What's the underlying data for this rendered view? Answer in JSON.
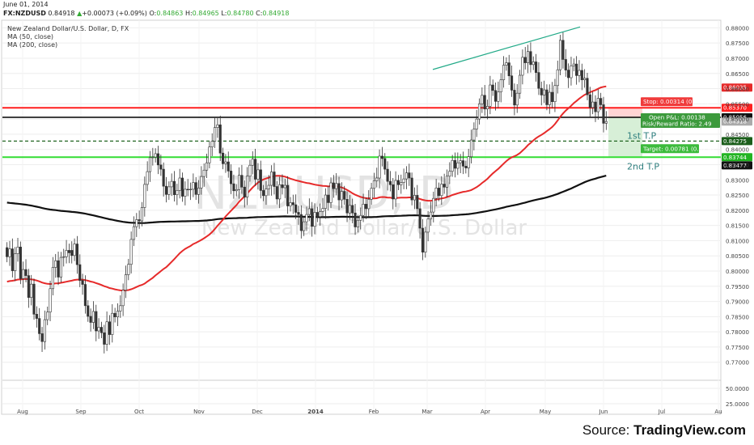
{
  "header": {
    "date": "June 01, 2014",
    "symbol": "FX:NZDUSD",
    "last": "0.84918",
    "change": "+0.00073 (+0.09%)",
    "open_label": "O:",
    "open": "0.84863",
    "high_label": "H:",
    "high": "0.84965",
    "low_label": "L:",
    "low": "0.84780",
    "close_label": "C:",
    "close": "0.84918",
    "title": "New Zealand Dollar/U.S. Dollar, D, FX",
    "ma50": "MA (50, close)",
    "ma200": "MA (200, close)"
  },
  "watermark": {
    "ticker": "NZDUSD, D",
    "name": "New Zealand Dollar/U.S. Dollar"
  },
  "source": {
    "prefix": "Source: ",
    "name": "TradingView.com"
  },
  "colors": {
    "up": "#ffffff",
    "down": "#333333",
    "ma50": "#e62a2a",
    "ma200": "#111111",
    "stop": "#ff1f1f",
    "target": "#33dd33",
    "trend": "#22aa88",
    "profit_zone": "#d7efd7",
    "loss_zone": "#ffd4d4"
  },
  "chart_data": {
    "type": "candlestick",
    "title": "New Zealand Dollar/U.S. Dollar, D, FX",
    "xlabel": "",
    "ylabel": "",
    "x_ticks": [
      "Aug",
      "Sep",
      "Oct",
      "Nov",
      "Dec",
      "2014",
      "Feb",
      "Mar",
      "Apr",
      "May",
      "Jun",
      "Jul",
      "Au"
    ],
    "y_ticks": [
      "0.88000",
      "0.87500",
      "0.87000",
      "0.86500",
      "0.86000",
      "0.85500",
      "0.85000",
      "0.84500",
      "0.84000",
      "0.83500",
      "0.83000",
      "0.82500",
      "0.82000",
      "0.81500",
      "0.81000",
      "0.80500",
      "0.80000",
      "0.79500",
      "0.79000",
      "0.78500",
      "0.78000",
      "0.77500",
      "0.77000",
      "50.0000",
      "25.0000"
    ],
    "ylim": [
      0.7654,
      0.8825
    ],
    "price_lines": [
      {
        "name": "Stop",
        "value": 0.8537,
        "tag": "0.85370",
        "label": "Stop: 0.00314 (0.37%)"
      },
      {
        "name": "Entry",
        "value": 0.85056,
        "tag": "0.85056",
        "label": "Open P&L: 0.00138",
        "label2": "Risk/Reward Ratio: 2.49"
      },
      {
        "name": "1st T.P",
        "value": 0.84275,
        "tag": "0.84275",
        "label": "1st T.P"
      },
      {
        "name": "Target",
        "value": 0.83744,
        "tag": "0.83744",
        "label": "Target: 0.00781 (0.92%)"
      },
      {
        "name": "2nd T.P",
        "value": 0.8344,
        "label": "2nd T.P"
      }
    ],
    "ma_tags": {
      "ma50": "0.86035",
      "ma200": "0.83477",
      "last": "0.84918"
    },
    "candles": [
      [
        0.8077,
        0.8047
      ],
      [
        0.8047,
        0.8073
      ],
      [
        0.8073,
        0.8001
      ],
      [
        0.8001,
        0.8057
      ],
      [
        0.8057,
        0.8079
      ],
      [
        0.8079,
        0.7975
      ],
      [
        0.7975,
        0.8005
      ],
      [
        0.8005,
        0.7985
      ],
      [
        0.7985,
        0.7913
      ],
      [
        0.7913,
        0.7957
      ],
      [
        0.7957,
        0.7858
      ],
      [
        0.7858,
        0.7844
      ],
      [
        0.7844,
        0.7794
      ],
      [
        0.7794,
        0.7768
      ],
      [
        0.7768,
        0.784
      ],
      [
        0.784,
        0.7865
      ],
      [
        0.7865,
        0.7942
      ],
      [
        0.7942,
        0.8012
      ],
      [
        0.8012,
        0.8034
      ],
      [
        0.8034,
        0.798
      ],
      [
        0.798,
        0.8045
      ],
      [
        0.8045,
        0.8047
      ],
      [
        0.8047,
        0.8068
      ],
      [
        0.8068,
        0.806
      ],
      [
        0.8068,
        0.8051
      ],
      [
        0.8051,
        0.8089
      ],
      [
        0.8089,
        0.8021
      ],
      [
        0.8021,
        0.7969
      ],
      [
        0.7969,
        0.7956
      ],
      [
        0.7956,
        0.7886
      ],
      [
        0.7886,
        0.7851
      ],
      [
        0.7851,
        0.7831
      ],
      [
        0.7831,
        0.7867
      ],
      [
        0.7867,
        0.7803
      ],
      [
        0.7803,
        0.7815
      ],
      [
        0.7815,
        0.7797
      ],
      [
        0.7797,
        0.7759
      ],
      [
        0.7759,
        0.7833
      ],
      [
        0.7833,
        0.7791
      ],
      [
        0.7791,
        0.7861
      ],
      [
        0.7861,
        0.7849
      ],
      [
        0.7849,
        0.7868
      ],
      [
        0.7868,
        0.7886
      ],
      [
        0.7886,
        0.7937
      ],
      [
        0.7937,
        0.7988
      ],
      [
        0.7988,
        0.8022
      ],
      [
        0.8022,
        0.8104
      ],
      [
        0.8104,
        0.8146
      ],
      [
        0.8146,
        0.8169
      ],
      [
        0.8169,
        0.8165
      ],
      [
        0.8165,
        0.8209
      ],
      [
        0.8209,
        0.8285
      ],
      [
        0.8285,
        0.8327
      ],
      [
        0.8327,
        0.8373
      ],
      [
        0.8373,
        0.8375
      ],
      [
        0.8375,
        0.8386
      ],
      [
        0.8386,
        0.8349
      ],
      [
        0.8349,
        0.8335
      ],
      [
        0.8335,
        0.8279
      ],
      [
        0.8279,
        0.8252
      ],
      [
        0.8252,
        0.8277
      ],
      [
        0.8277,
        0.8295
      ],
      [
        0.8295,
        0.8251
      ],
      [
        0.8251,
        0.8265
      ],
      [
        0.8265,
        0.8306
      ],
      [
        0.8306,
        0.8246
      ],
      [
        0.8246,
        0.8269
      ],
      [
        0.8269,
        0.8268
      ],
      [
        0.8268,
        0.8269
      ],
      [
        0.8269,
        0.8291
      ],
      [
        0.8291,
        0.8252
      ],
      [
        0.8252,
        0.8273
      ],
      [
        0.8273,
        0.8311
      ],
      [
        0.8311,
        0.8332
      ],
      [
        0.8332,
        0.8356
      ],
      [
        0.8356,
        0.8408
      ],
      [
        0.8408,
        0.8427
      ],
      [
        0.8427,
        0.8472
      ],
      [
        0.8472,
        0.8481
      ],
      [
        0.8481,
        0.8388
      ],
      [
        0.8388,
        0.8353
      ],
      [
        0.8353,
        0.8359
      ],
      [
        0.8359,
        0.8329
      ],
      [
        0.8329,
        0.8287
      ],
      [
        0.8287,
        0.8264
      ],
      [
        0.8264,
        0.8268
      ],
      [
        0.8268,
        0.8315
      ],
      [
        0.8315,
        0.8276
      ],
      [
        0.8276,
        0.8243
      ],
      [
        0.8243,
        0.8312
      ],
      [
        0.8312,
        0.8348
      ],
      [
        0.8348,
        0.8368
      ],
      [
        0.8368,
        0.8302
      ],
      [
        0.8302,
        0.8333
      ],
      [
        0.8333,
        0.8265
      ],
      [
        0.8265,
        0.8248
      ],
      [
        0.8248,
        0.827
      ],
      [
        0.827,
        0.8282
      ],
      [
        0.8282,
        0.8326
      ],
      [
        0.8326,
        0.8278
      ],
      [
        0.8278,
        0.8237
      ],
      [
        0.8237,
        0.8284
      ],
      [
        0.8284,
        0.8274
      ],
      [
        0.8274,
        0.8282
      ],
      [
        0.8282,
        0.8214
      ],
      [
        0.8214,
        0.8225
      ],
      [
        0.8225,
        0.8218
      ],
      [
        0.8218,
        0.8193
      ],
      [
        0.8193,
        0.8186
      ],
      [
        0.8186,
        0.8133
      ],
      [
        0.8133,
        0.8162
      ],
      [
        0.8162,
        0.8186
      ],
      [
        0.8186,
        0.8205
      ],
      [
        0.8205,
        0.8147
      ],
      [
        0.8147,
        0.8193
      ],
      [
        0.8193,
        0.8179
      ],
      [
        0.8179,
        0.8196
      ],
      [
        0.8196,
        0.8206
      ],
      [
        0.8206,
        0.825
      ],
      [
        0.825,
        0.8225
      ],
      [
        0.8225,
        0.829
      ],
      [
        0.829,
        0.8271
      ],
      [
        0.8271,
        0.8288
      ],
      [
        0.8288,
        0.8234
      ],
      [
        0.8234,
        0.8262
      ],
      [
        0.8262,
        0.8236
      ],
      [
        0.8236,
        0.8191
      ],
      [
        0.8191,
        0.8216
      ],
      [
        0.8216,
        0.8191
      ],
      [
        0.8191,
        0.8145
      ],
      [
        0.8145,
        0.8167
      ],
      [
        0.8167,
        0.8183
      ],
      [
        0.8183,
        0.822
      ],
      [
        0.822,
        0.8205
      ],
      [
        0.8205,
        0.8236
      ],
      [
        0.8236,
        0.8272
      ],
      [
        0.8272,
        0.8297
      ],
      [
        0.8297,
        0.8306
      ],
      [
        0.8306,
        0.8378
      ],
      [
        0.8378,
        0.837
      ],
      [
        0.837,
        0.8335
      ],
      [
        0.8335,
        0.8295
      ],
      [
        0.8295,
        0.8284
      ],
      [
        0.8284,
        0.8237
      ],
      [
        0.8237,
        0.8298
      ],
      [
        0.8298,
        0.8284
      ],
      [
        0.8284,
        0.8291
      ],
      [
        0.8291,
        0.8303
      ],
      [
        0.8303,
        0.8323
      ],
      [
        0.8323,
        0.8306
      ],
      [
        0.8306,
        0.8234
      ],
      [
        0.8234,
        0.8249
      ],
      [
        0.8249,
        0.8205
      ],
      [
        0.8205,
        0.8141
      ],
      [
        0.8141,
        0.8062
      ],
      [
        0.8062,
        0.8128
      ],
      [
        0.8128,
        0.8171
      ],
      [
        0.8171,
        0.8194
      ],
      [
        0.8194,
        0.8239
      ],
      [
        0.8239,
        0.8273
      ],
      [
        0.8273,
        0.8248
      ],
      [
        0.8248,
        0.8286
      ],
      [
        0.8286,
        0.8276
      ],
      [
        0.8276,
        0.8312
      ],
      [
        0.8312,
        0.8328
      ],
      [
        0.8328,
        0.8364
      ],
      [
        0.8364,
        0.8338
      ],
      [
        0.8338,
        0.8356
      ],
      [
        0.8356,
        0.8363
      ],
      [
        0.8363,
        0.8345
      ],
      [
        0.8345,
        0.8339
      ],
      [
        0.8339,
        0.8376
      ],
      [
        0.8376,
        0.8431
      ],
      [
        0.8431,
        0.8467
      ],
      [
        0.8467,
        0.85
      ],
      [
        0.85,
        0.855
      ],
      [
        0.855,
        0.8578
      ],
      [
        0.8578,
        0.8533
      ],
      [
        0.8533,
        0.8542
      ],
      [
        0.8542,
        0.8612
      ],
      [
        0.8612,
        0.8594
      ],
      [
        0.8594,
        0.8558
      ],
      [
        0.8558,
        0.8589
      ],
      [
        0.8589,
        0.8629
      ],
      [
        0.8629,
        0.8677
      ],
      [
        0.8677,
        0.8685
      ],
      [
        0.8685,
        0.8642
      ],
      [
        0.8642,
        0.8595
      ],
      [
        0.8595,
        0.8546
      ],
      [
        0.8546,
        0.8585
      ],
      [
        0.8585,
        0.8644
      ],
      [
        0.8644,
        0.8703
      ],
      [
        0.8703,
        0.8685
      ],
      [
        0.8685,
        0.8722
      ],
      [
        0.8722,
        0.8679
      ],
      [
        0.8679,
        0.8688
      ],
      [
        0.8688,
        0.8653
      ],
      [
        0.8653,
        0.8601
      ],
      [
        0.8601,
        0.8579
      ],
      [
        0.8579,
        0.8596
      ],
      [
        0.8596,
        0.8547
      ],
      [
        0.8547,
        0.8588
      ],
      [
        0.8588,
        0.8557
      ],
      [
        0.8557,
        0.861
      ],
      [
        0.861,
        0.8662
      ],
      [
        0.8662,
        0.8759
      ],
      [
        0.8759,
        0.8696
      ],
      [
        0.8696,
        0.8661
      ],
      [
        0.8661,
        0.8636
      ],
      [
        0.8636,
        0.8675
      ],
      [
        0.8675,
        0.8681
      ],
      [
        0.8681,
        0.8643
      ],
      [
        0.8643,
        0.866
      ],
      [
        0.866,
        0.8629
      ],
      [
        0.8629,
        0.8634
      ],
      [
        0.8634,
        0.858
      ],
      [
        0.858,
        0.8538
      ],
      [
        0.8538,
        0.8556
      ],
      [
        0.8556,
        0.8524
      ],
      [
        0.8524,
        0.8568
      ],
      [
        0.8568,
        0.8547
      ],
      [
        0.8547,
        0.8486
      ],
      [
        0.8486,
        0.8492
      ]
    ]
  }
}
